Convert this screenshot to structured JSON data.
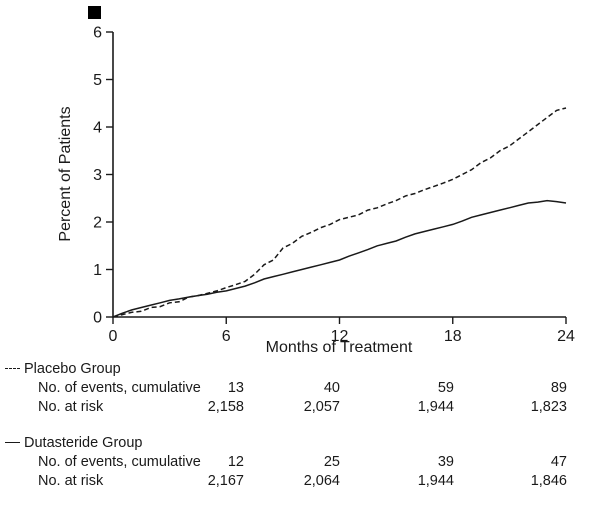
{
  "chart_data": {
    "type": "line",
    "title": "",
    "xlabel": "Months of Treatment",
    "ylabel": "Percent of Patients",
    "xlim": [
      0,
      24
    ],
    "ylim": [
      0,
      6
    ],
    "xticks": [
      0,
      6,
      12,
      18,
      24
    ],
    "yticks": [
      0,
      1,
      2,
      3,
      4,
      5,
      6
    ],
    "grid": false,
    "legend_position": "below",
    "series": [
      {
        "name": "Placebo Group",
        "style": "dashed",
        "points": [
          [
            0,
            0
          ],
          [
            0.5,
            0.05
          ],
          [
            1,
            0.1
          ],
          [
            1.5,
            0.12
          ],
          [
            2,
            0.2
          ],
          [
            2.5,
            0.22
          ],
          [
            3,
            0.3
          ],
          [
            3.5,
            0.32
          ],
          [
            4,
            0.42
          ],
          [
            4.5,
            0.45
          ],
          [
            5,
            0.5
          ],
          [
            5.5,
            0.55
          ],
          [
            6,
            0.62
          ],
          [
            6.5,
            0.68
          ],
          [
            7,
            0.75
          ],
          [
            7.5,
            0.9
          ],
          [
            8,
            1.1
          ],
          [
            8.5,
            1.2
          ],
          [
            9,
            1.45
          ],
          [
            9.5,
            1.55
          ],
          [
            10,
            1.7
          ],
          [
            10.5,
            1.78
          ],
          [
            11,
            1.88
          ],
          [
            11.5,
            1.95
          ],
          [
            12,
            2.05
          ],
          [
            12.5,
            2.1
          ],
          [
            13,
            2.15
          ],
          [
            13.5,
            2.25
          ],
          [
            14,
            2.3
          ],
          [
            14.5,
            2.38
          ],
          [
            15,
            2.45
          ],
          [
            15.5,
            2.55
          ],
          [
            16,
            2.6
          ],
          [
            16.5,
            2.68
          ],
          [
            17,
            2.75
          ],
          [
            17.5,
            2.82
          ],
          [
            18,
            2.9
          ],
          [
            18.5,
            3.0
          ],
          [
            19,
            3.1
          ],
          [
            19.5,
            3.25
          ],
          [
            20,
            3.35
          ],
          [
            20.5,
            3.5
          ],
          [
            21,
            3.6
          ],
          [
            21.5,
            3.75
          ],
          [
            22,
            3.9
          ],
          [
            22.5,
            4.05
          ],
          [
            23,
            4.2
          ],
          [
            23.5,
            4.35
          ],
          [
            24,
            4.4
          ]
        ]
      },
      {
        "name": "Dutasteride Group",
        "style": "solid",
        "points": [
          [
            0,
            0
          ],
          [
            0.5,
            0.08
          ],
          [
            1,
            0.15
          ],
          [
            1.5,
            0.2
          ],
          [
            2,
            0.25
          ],
          [
            2.5,
            0.3
          ],
          [
            3,
            0.35
          ],
          [
            3.5,
            0.38
          ],
          [
            4,
            0.42
          ],
          [
            4.5,
            0.45
          ],
          [
            5,
            0.48
          ],
          [
            5.5,
            0.52
          ],
          [
            6,
            0.55
          ],
          [
            6.5,
            0.6
          ],
          [
            7,
            0.65
          ],
          [
            7.5,
            0.72
          ],
          [
            8,
            0.8
          ],
          [
            8.5,
            0.85
          ],
          [
            9,
            0.9
          ],
          [
            9.5,
            0.95
          ],
          [
            10,
            1.0
          ],
          [
            10.5,
            1.05
          ],
          [
            11,
            1.1
          ],
          [
            11.5,
            1.15
          ],
          [
            12,
            1.2
          ],
          [
            12.5,
            1.28
          ],
          [
            13,
            1.35
          ],
          [
            13.5,
            1.42
          ],
          [
            14,
            1.5
          ],
          [
            14.5,
            1.55
          ],
          [
            15,
            1.6
          ],
          [
            15.5,
            1.68
          ],
          [
            16,
            1.75
          ],
          [
            16.5,
            1.8
          ],
          [
            17,
            1.85
          ],
          [
            17.5,
            1.9
          ],
          [
            18,
            1.95
          ],
          [
            18.5,
            2.02
          ],
          [
            19,
            2.1
          ],
          [
            19.5,
            2.15
          ],
          [
            20,
            2.2
          ],
          [
            20.5,
            2.25
          ],
          [
            21,
            2.3
          ],
          [
            21.5,
            2.35
          ],
          [
            22,
            2.4
          ],
          [
            22.5,
            2.42
          ],
          [
            23,
            2.45
          ],
          [
            23.5,
            2.43
          ],
          [
            24,
            2.4
          ]
        ]
      }
    ]
  },
  "table": {
    "month_columns": [
      "6",
      "12",
      "18",
      "24"
    ],
    "groups": [
      {
        "name": "Placebo Group",
        "line_style": "dashed",
        "rows": [
          {
            "label": "No. of events, cumulative",
            "values": [
              "13",
              "40",
              "59",
              "89"
            ]
          },
          {
            "label": "No. at risk",
            "values": [
              "2,158",
              "2,057",
              "1,944",
              "1,823"
            ]
          }
        ]
      },
      {
        "name": "Dutasteride Group",
        "line_style": "solid",
        "rows": [
          {
            "label": "No. of events, cumulative",
            "values": [
              "12",
              "25",
              "39",
              "47"
            ]
          },
          {
            "label": "No. at risk",
            "values": [
              "2,167",
              "2,064",
              "1,944",
              "1,846"
            ]
          }
        ]
      }
    ]
  }
}
